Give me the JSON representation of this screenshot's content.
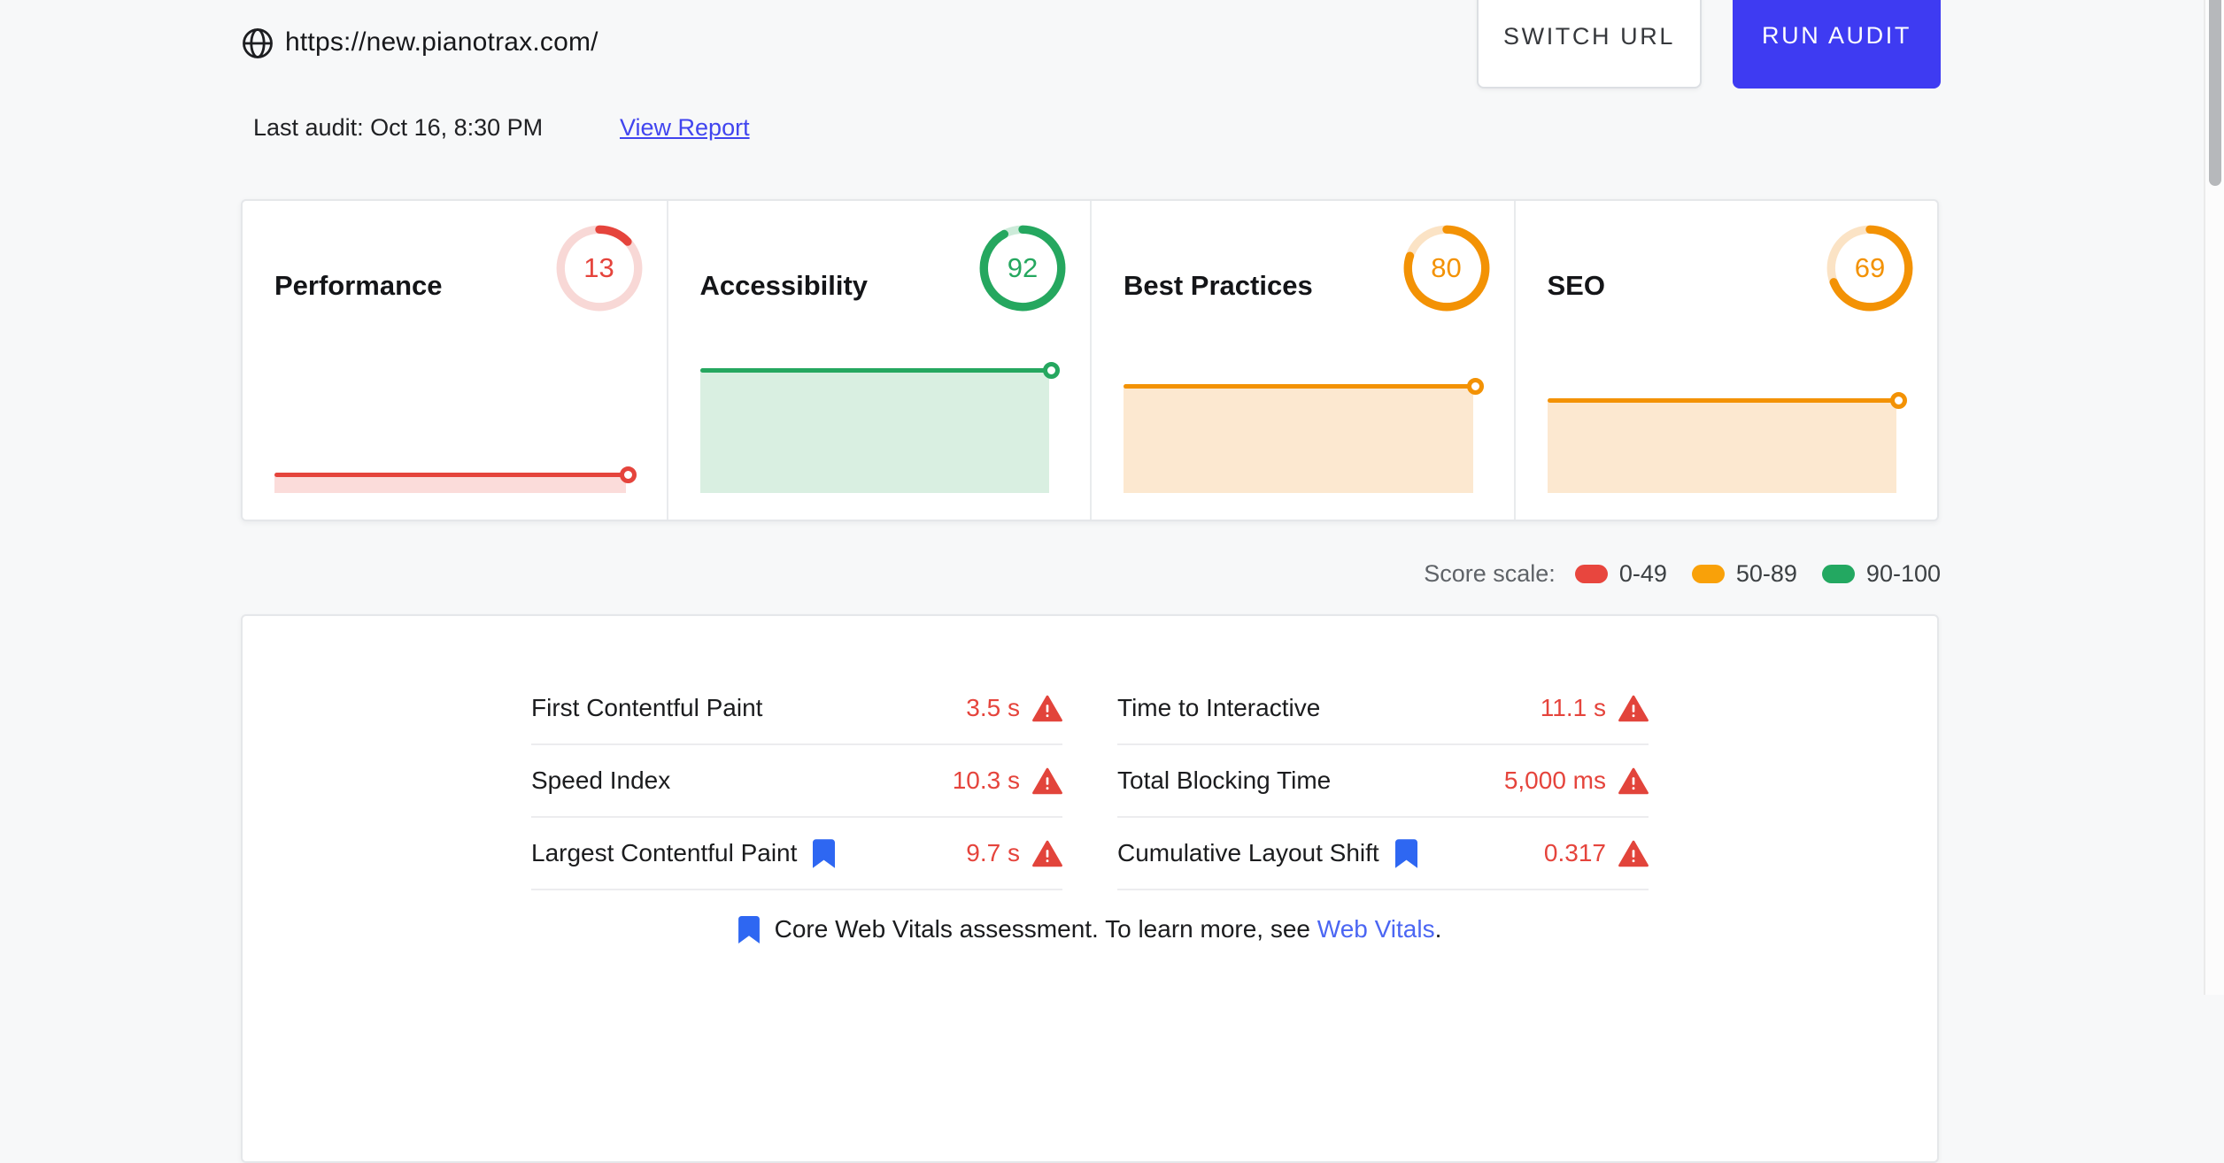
{
  "header": {
    "url": "https://new.pianotrax.com/",
    "last_audit": "Last audit: Oct 16, 8:30 PM",
    "view_report_label": "View Report",
    "switch_url_label": "SWITCH URL",
    "run_audit_label": "RUN AUDIT"
  },
  "cards": [
    {
      "title": "Performance",
      "score": 13,
      "color": "#e5443c",
      "track_color": "#f8d8d6",
      "fill_color": "#fbdcda"
    },
    {
      "title": "Accessibility",
      "score": 92,
      "color": "#25a75f",
      "track_color": "#ccebd9",
      "fill_color": "#d9efe1"
    },
    {
      "title": "Best Practices",
      "score": 80,
      "color": "#f39204",
      "track_color": "#fbe3c5",
      "fill_color": "#fce8d0"
    },
    {
      "title": "SEO",
      "score": 69,
      "color": "#f39204",
      "track_color": "#fbe3c5",
      "fill_color": "#fce8d0"
    }
  ],
  "score_scale": {
    "label": "Score scale:",
    "ranges": [
      {
        "label": "0-49",
        "color": "#e8463e"
      },
      {
        "label": "50-89",
        "color": "#f9a109"
      },
      {
        "label": "90-100",
        "color": "#23a861"
      }
    ]
  },
  "metrics": {
    "left": [
      {
        "label": "First Contentful Paint",
        "value": "3.5 s",
        "core_web_vital": false,
        "warning": true
      },
      {
        "label": "Speed Index",
        "value": "10.3 s",
        "core_web_vital": false,
        "warning": true
      },
      {
        "label": "Largest Contentful Paint",
        "value": "9.7 s",
        "core_web_vital": true,
        "warning": true
      }
    ],
    "right": [
      {
        "label": "Time to Interactive",
        "value": "11.1 s",
        "core_web_vital": false,
        "warning": true
      },
      {
        "label": "Total Blocking Time",
        "value": "5,000 ms",
        "core_web_vital": false,
        "warning": true
      },
      {
        "label": "Cumulative Layout Shift",
        "value": "0.317",
        "core_web_vital": true,
        "warning": true
      }
    ],
    "note": {
      "prefix": "Core Web Vitals assessment. To learn more, see ",
      "link": "Web Vitals",
      "suffix": "."
    }
  },
  "colors": {
    "run_audit_bg": "#3e3bf2",
    "view_report_link": "#4145ef",
    "web_vitals_link": "#4b66f3",
    "bookmark_blue": "#2e67f2",
    "warning_red": "#e2443b",
    "value_red": "#e5443c",
    "page_bg": "#f7f8f9"
  }
}
